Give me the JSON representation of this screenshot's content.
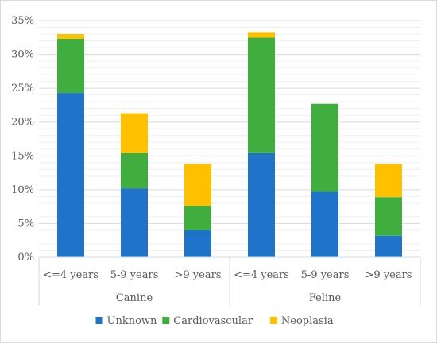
{
  "chart_data": {
    "type": "bar",
    "stacked": true,
    "groups": [
      {
        "name": "Canine",
        "categories": [
          "<=4 years",
          "5-9 years",
          ">9 years"
        ]
      },
      {
        "name": "Feline",
        "categories": [
          "<=4 years",
          "5-9 years",
          ">9 years"
        ]
      }
    ],
    "series": [
      {
        "name": "Unknown",
        "color": "#1f73c8",
        "values": [
          24.3,
          10.2,
          4.0,
          15.4,
          9.7,
          3.2
        ]
      },
      {
        "name": "Cardiovascular",
        "color": "#3fae3f",
        "values": [
          8.0,
          5.2,
          3.6,
          17.1,
          13.0,
          5.7
        ]
      },
      {
        "name": "Neoplasia",
        "color": "#ffc000",
        "values": [
          0.7,
          5.9,
          6.2,
          0.8,
          0.0,
          4.9
        ]
      }
    ],
    "ylim": [
      0,
      35
    ],
    "yticks": [
      "0%",
      "5%",
      "10%",
      "15%",
      "20%",
      "25%",
      "30%",
      "35%"
    ],
    "grid": true,
    "legend": "bottom",
    "xlabel": "",
    "ylabel": ""
  }
}
